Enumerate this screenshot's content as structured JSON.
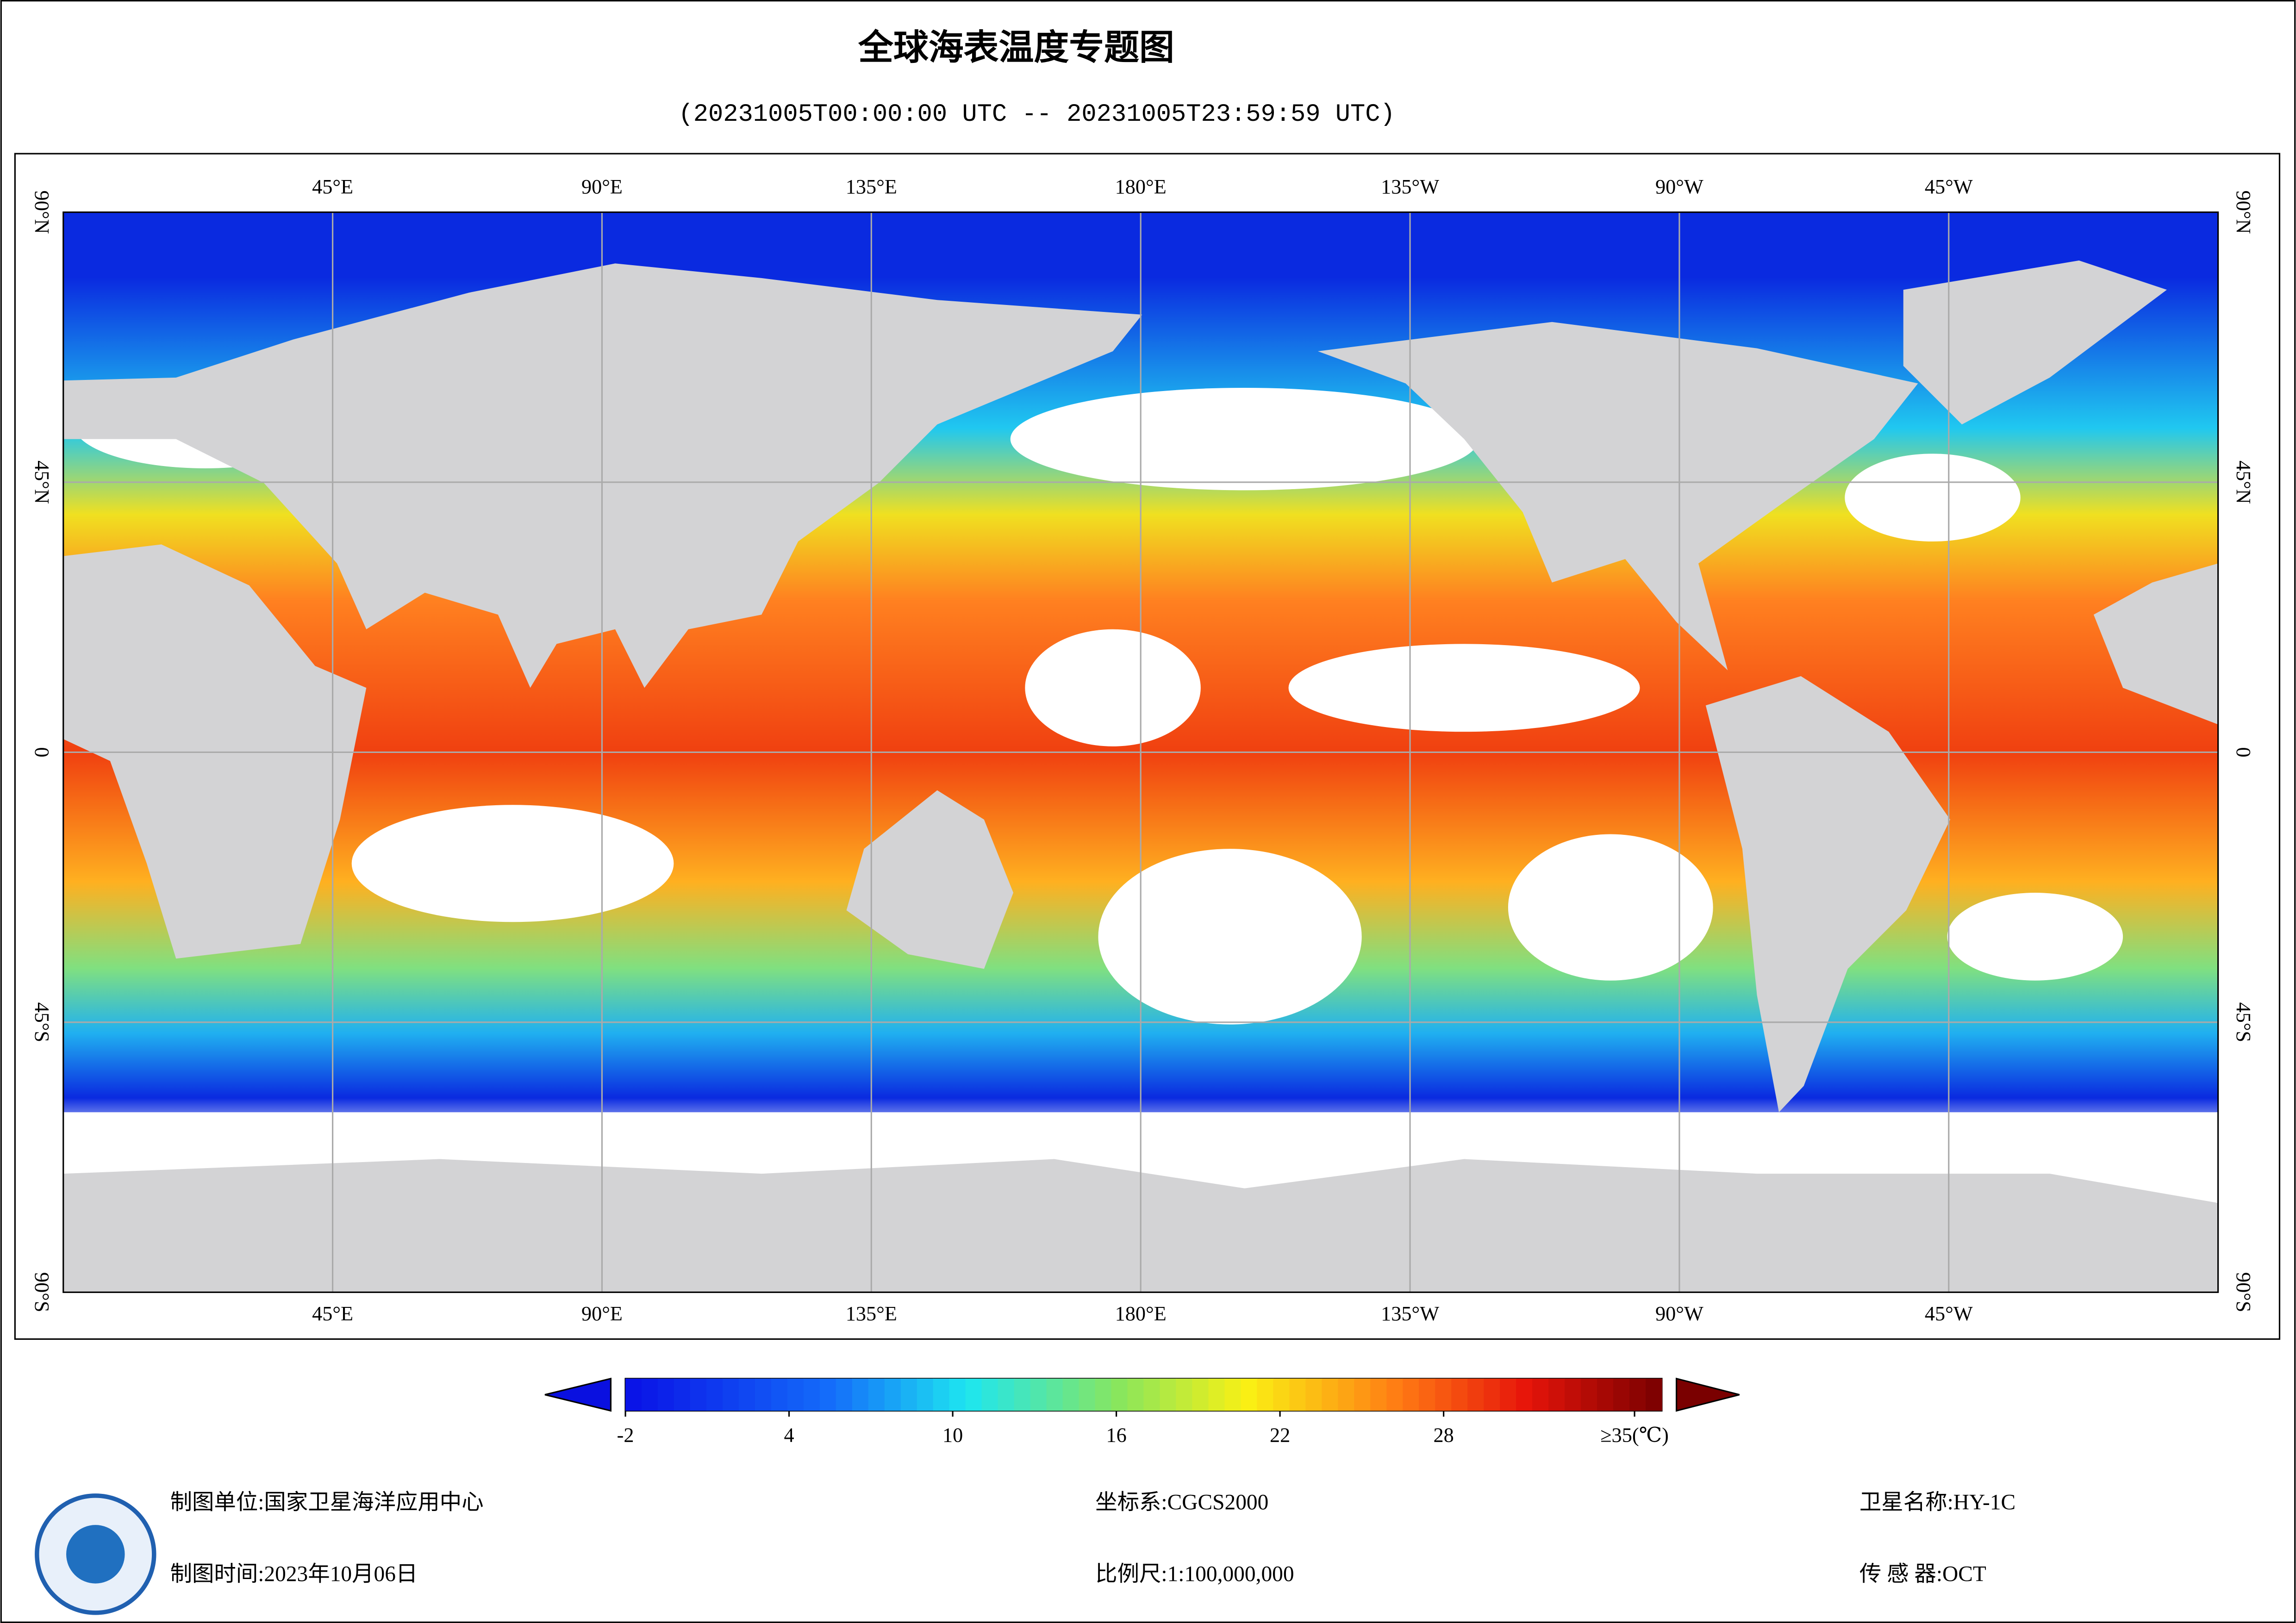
{
  "header": {
    "title": "全球海表温度专题图",
    "subtitle": "(20231005T00:00:00 UTC -- 20231005T23:59:59 UTC)"
  },
  "map": {
    "xlim": [
      0,
      360
    ],
    "ylim": [
      -90,
      90
    ],
    "lon_ticks": [
      {
        "value": 45,
        "label": "45°E"
      },
      {
        "value": 90,
        "label": "90°E"
      },
      {
        "value": 135,
        "label": "135°E"
      },
      {
        "value": 180,
        "label": "180°E"
      },
      {
        "value": 225,
        "label": "135°W"
      },
      {
        "value": 270,
        "label": "90°W"
      },
      {
        "value": 315,
        "label": "45°W"
      }
    ],
    "lat_ticks": [
      {
        "value": 90,
        "label": "90°N"
      },
      {
        "value": 45,
        "label": "45°N"
      },
      0,
      {
        "value": -45,
        "label": "45°S"
      },
      {
        "value": -90,
        "label": "90°S"
      }
    ]
  },
  "colorbar": {
    "clim": [
      -2,
      36
    ],
    "ticks": [
      -2,
      4,
      10,
      16,
      22,
      28,
      {
        "value": 35,
        "label": "≥35(℃)"
      }
    ]
  },
  "footer": {
    "unit": "制图单位:国家卫星海洋应用中心",
    "time": "制图时间:2023年10月06日",
    "crs": "坐标系:CGCS2000",
    "scale": "比例尺:1:100,000,000",
    "satellite": "卫星名称:HY-1C",
    "sensor": "传 感 器:OCT"
  }
}
